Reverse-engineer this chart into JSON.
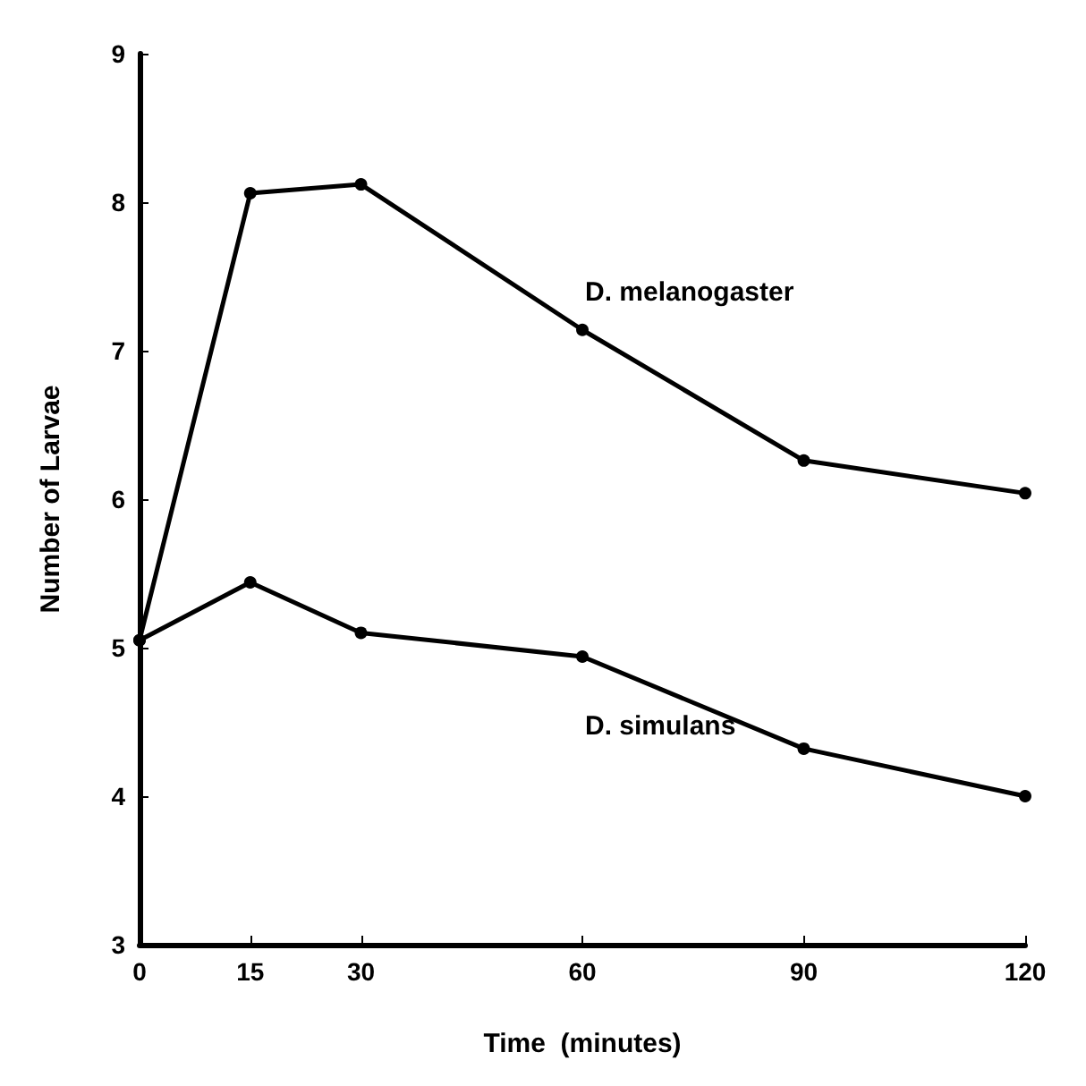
{
  "chart_data": {
    "type": "line",
    "xlabel": "Time  (minutes)",
    "ylabel": "Number of Larvae",
    "x": [
      0,
      15,
      30,
      60,
      90,
      120
    ],
    "series": [
      {
        "name": "D. melanogaster",
        "color": "#000000",
        "values": [
          5.05,
          8.06,
          8.12,
          7.14,
          6.26,
          6.04
        ]
      },
      {
        "name": "D. simulans",
        "color": "#000000",
        "values": [
          5.05,
          5.44,
          5.1,
          4.94,
          4.32,
          4.0
        ]
      }
    ],
    "xlim": [
      0,
      120
    ],
    "xticks": [
      0,
      15,
      30,
      60,
      90,
      120
    ],
    "ylim": [
      3,
      9
    ],
    "yticks": [
      3,
      4,
      5,
      6,
      7,
      8,
      9
    ],
    "grid": false,
    "legend": false,
    "marker": "circle",
    "line_style": "solid"
  }
}
